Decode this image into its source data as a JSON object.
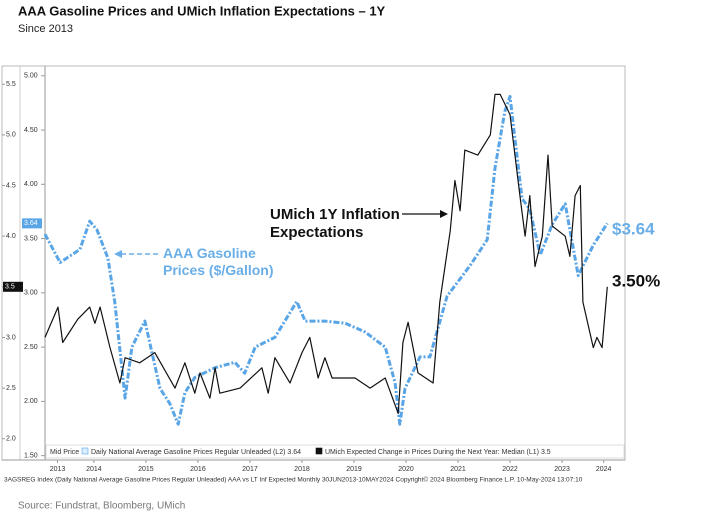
{
  "chart_data": {
    "type": "line",
    "title": "AAA Gasoline Prices and UMich Inflation Expectations – 1Y",
    "subtitle": "Since 2013",
    "legend_title": "Mid Price",
    "footer": "3AGSREG Index (Daily National Average Gasoline Prices Regular Unleaded) AAA vs LT Inf Expected  Monthly 30JUN2013-10MAY2024   Copyright© 2024 Bloomberg Finance L.P.    10-May-2024 13:07:10",
    "source": "Source: Fundstrat, Bloomberg, UMich",
    "xlim": [
      2013.56,
      2024.71
    ],
    "xticks": [
      {
        "value": 2013.8,
        "label": "2013"
      },
      {
        "value": 2014.5,
        "label": "2014"
      },
      {
        "value": 2015.5,
        "label": "2015"
      },
      {
        "value": 2016.5,
        "label": "2016"
      },
      {
        "value": 2017.5,
        "label": "2017"
      },
      {
        "value": 2018.5,
        "label": "2018"
      },
      {
        "value": 2019.5,
        "label": "2019"
      },
      {
        "value": 2020.5,
        "label": "2020"
      },
      {
        "value": 2021.5,
        "label": "2021"
      },
      {
        "value": 2022.5,
        "label": "2022"
      },
      {
        "value": 2023.5,
        "label": "2023"
      },
      {
        "value": 2024.3,
        "label": "2024"
      }
    ],
    "ylim": [
      1.79,
      5.68
    ],
    "yticks": [
      {
        "value": 2,
        "label": "2.0"
      },
      {
        "value": 2.5,
        "label": "2.5"
      },
      {
        "value": 3,
        "label": "3.0"
      },
      {
        "value": 3.5,
        "label": "3.5"
      },
      {
        "value": 4,
        "label": "4.0"
      },
      {
        "value": 4.5,
        "label": "4.5"
      },
      {
        "value": 5,
        "label": "5.0"
      },
      {
        "value": 5.5,
        "label": "5.5"
      }
    ],
    "y2lim": [
      1.46,
      5.09
    ],
    "y2ticks": [
      {
        "value": 1.5,
        "label": "1.50"
      },
      {
        "value": 2,
        "label": "2.00"
      },
      {
        "value": 2.5,
        "label": "2.50"
      },
      {
        "value": 3,
        "label": "3.00"
      },
      {
        "value": 3.5,
        "label": "3.50"
      },
      {
        "value": 4,
        "label": "4.00"
      },
      {
        "value": 4.5,
        "label": "4.50"
      },
      {
        "value": 5,
        "label": "5.00"
      }
    ],
    "series": [
      {
        "name": "Daily National Average Gasoline Prices Regular Unleaded (L2) 3.64",
        "color": "#5aa5e6",
        "axis": "y2",
        "tag": "3.64",
        "x": [
          2013.56,
          2013.85,
          2014.23,
          2014.42,
          2014.56,
          2014.77,
          2014.9,
          2015.1,
          2015.23,
          2015.48,
          2015.77,
          2015.96,
          2016.12,
          2016.25,
          2016.44,
          2016.83,
          2017.21,
          2017.4,
          2017.6,
          2017.98,
          2018.4,
          2018.56,
          2018.94,
          2019.33,
          2019.71,
          2020.1,
          2020.29,
          2020.38,
          2020.48,
          2020.77,
          2020.96,
          2021.29,
          2021.73,
          2022.06,
          2022.21,
          2022.4,
          2022.5,
          2022.73,
          2022.88,
          2023.08,
          2023.31,
          2023.56,
          2023.81,
          2024.1,
          2024.37
        ],
        "values": [
          3.54,
          3.28,
          3.4,
          3.66,
          3.58,
          3.32,
          2.92,
          2.03,
          2.5,
          2.74,
          2.12,
          1.98,
          1.79,
          2.08,
          2.22,
          2.31,
          2.36,
          2.26,
          2.5,
          2.59,
          2.92,
          2.74,
          2.74,
          2.72,
          2.64,
          2.5,
          2.17,
          1.79,
          2.12,
          2.41,
          2.41,
          2.97,
          3.25,
          3.49,
          4.15,
          4.67,
          4.81,
          3.87,
          3.77,
          3.35,
          3.63,
          3.82,
          3.16,
          3.44,
          3.64
        ]
      },
      {
        "name": "UMich Expected Change in Prices During the Next Year: Median (L1) 3.5",
        "color": "#111111",
        "tag": "3.5",
        "x": [
          2013.56,
          2013.81,
          2013.9,
          2014.19,
          2014.42,
          2014.52,
          2014.62,
          2014.81,
          2015.0,
          2015.1,
          2015.38,
          2015.67,
          2016.06,
          2016.25,
          2016.44,
          2016.54,
          2016.73,
          2016.83,
          2016.92,
          2017.31,
          2017.73,
          2017.85,
          2017.98,
          2018.27,
          2018.5,
          2018.65,
          2018.81,
          2018.94,
          2019.08,
          2019.52,
          2019.81,
          2020.1,
          2020.35,
          2020.44,
          2020.54,
          2020.73,
          2021.02,
          2021.15,
          2021.35,
          2021.44,
          2021.54,
          2021.63,
          2021.88,
          2022.12,
          2022.21,
          2022.31,
          2022.5,
          2022.69,
          2022.79,
          2022.88,
          2022.98,
          2023.12,
          2023.23,
          2023.31,
          2023.56,
          2023.65,
          2023.75,
          2023.85,
          2023.9,
          2024.1,
          2024.17,
          2024.27,
          2024.37
        ],
        "values": [
          3.0,
          3.3,
          2.95,
          3.18,
          3.3,
          3.14,
          3.3,
          2.9,
          2.55,
          2.8,
          2.75,
          2.85,
          2.5,
          2.75,
          2.45,
          2.65,
          2.4,
          2.7,
          2.45,
          2.5,
          2.7,
          2.45,
          2.8,
          2.55,
          2.85,
          3.0,
          2.6,
          2.8,
          2.6,
          2.6,
          2.5,
          2.6,
          2.25,
          2.95,
          3.15,
          2.65,
          2.55,
          3.35,
          4.05,
          4.55,
          4.25,
          4.85,
          4.8,
          5.0,
          5.4,
          5.4,
          5.2,
          4.4,
          4.0,
          4.4,
          3.7,
          4.0,
          4.8,
          4.1,
          4.0,
          3.8,
          4.4,
          4.5,
          3.35,
          2.9,
          3.0,
          2.9,
          3.5
        ]
      }
    ],
    "annotations": [
      {
        "lines": [
          "UMich 1Y Inflation",
          "Expectations"
        ],
        "color": "#111111"
      },
      {
        "lines": [
          "AAA Gasoline",
          "Prices ($/Gallon)"
        ],
        "color": "#6aaee8"
      },
      {
        "text": "$3.64",
        "color": "#6aaee8"
      },
      {
        "text": "3.50%",
        "color": "#111111"
      }
    ]
  }
}
